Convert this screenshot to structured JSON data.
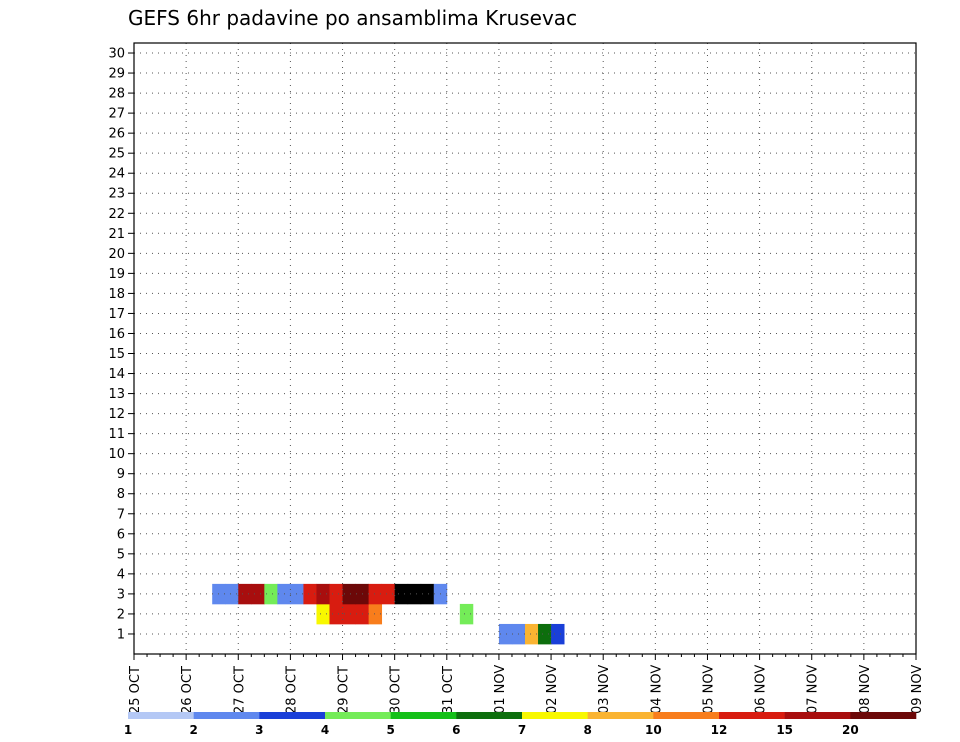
{
  "chart_data": {
    "type": "heatmap",
    "title": "GEFS 6hr padavine po ansamblima Krusevac",
    "ylim": [
      0,
      30
    ],
    "y_ticks": [
      "1",
      "2",
      "3",
      "4",
      "5",
      "6",
      "7",
      "8",
      "9",
      "10",
      "11",
      "12",
      "13",
      "14",
      "15",
      "16",
      "17",
      "18",
      "19",
      "20",
      "21",
      "22",
      "23",
      "24",
      "25",
      "26",
      "27",
      "28",
      "29",
      "30"
    ],
    "x_ticks": [
      "25 OCT",
      "26 OCT",
      "27 OCT",
      "28 OCT",
      "29 OCT",
      "30 OCT",
      "31 OCT",
      "01 NOV",
      "02 NOV",
      "03 NOV",
      "04 NOV",
      "05 NOV",
      "06 NOV",
      "07 NOV",
      "08 NOV",
      "09 NOV"
    ],
    "x_start": "2025-10-25 00Z",
    "step_hours": 6,
    "grid": "dotted",
    "colorbar": {
      "levels": [
        "1",
        "2",
        "3",
        "4",
        "5",
        "6",
        "7",
        "8",
        "10",
        "12",
        "15",
        "20"
      ],
      "colors": [
        "#b4c8f5",
        "#5f88ee",
        "#1a3fd8",
        "#74ec58",
        "#14c018",
        "#0d6e0d",
        "#f8f800",
        "#fab432",
        "#f87d1c",
        "#d81c10",
        "#a80e0e",
        "#6c0808"
      ]
    },
    "cells": [
      [
        1,
        28,
        1
      ],
      [
        1,
        29,
        1
      ],
      [
        1,
        30,
        7
      ],
      [
        1,
        31,
        5
      ],
      [
        1,
        32,
        2
      ],
      [
        2,
        14,
        6
      ],
      [
        2,
        15,
        9
      ],
      [
        2,
        16,
        9
      ],
      [
        2,
        17,
        9
      ],
      [
        2,
        18,
        8
      ],
      [
        2,
        25,
        3
      ],
      [
        3,
        6,
        1
      ],
      [
        3,
        7,
        1
      ],
      [
        3,
        8,
        10
      ],
      [
        3,
        9,
        10
      ],
      [
        3,
        10,
        3
      ],
      [
        3,
        11,
        1
      ],
      [
        3,
        12,
        1
      ],
      [
        3,
        13,
        9
      ],
      [
        3,
        14,
        10
      ],
      [
        3,
        15,
        9
      ],
      [
        3,
        16,
        11
      ],
      [
        3,
        17,
        11
      ],
      [
        3,
        18,
        9
      ],
      [
        3,
        19,
        9
      ],
      [
        3,
        20,
        12
      ],
      [
        3,
        21,
        12
      ],
      [
        3,
        22,
        12
      ],
      [
        3,
        23,
        1
      ]
    ]
  }
}
